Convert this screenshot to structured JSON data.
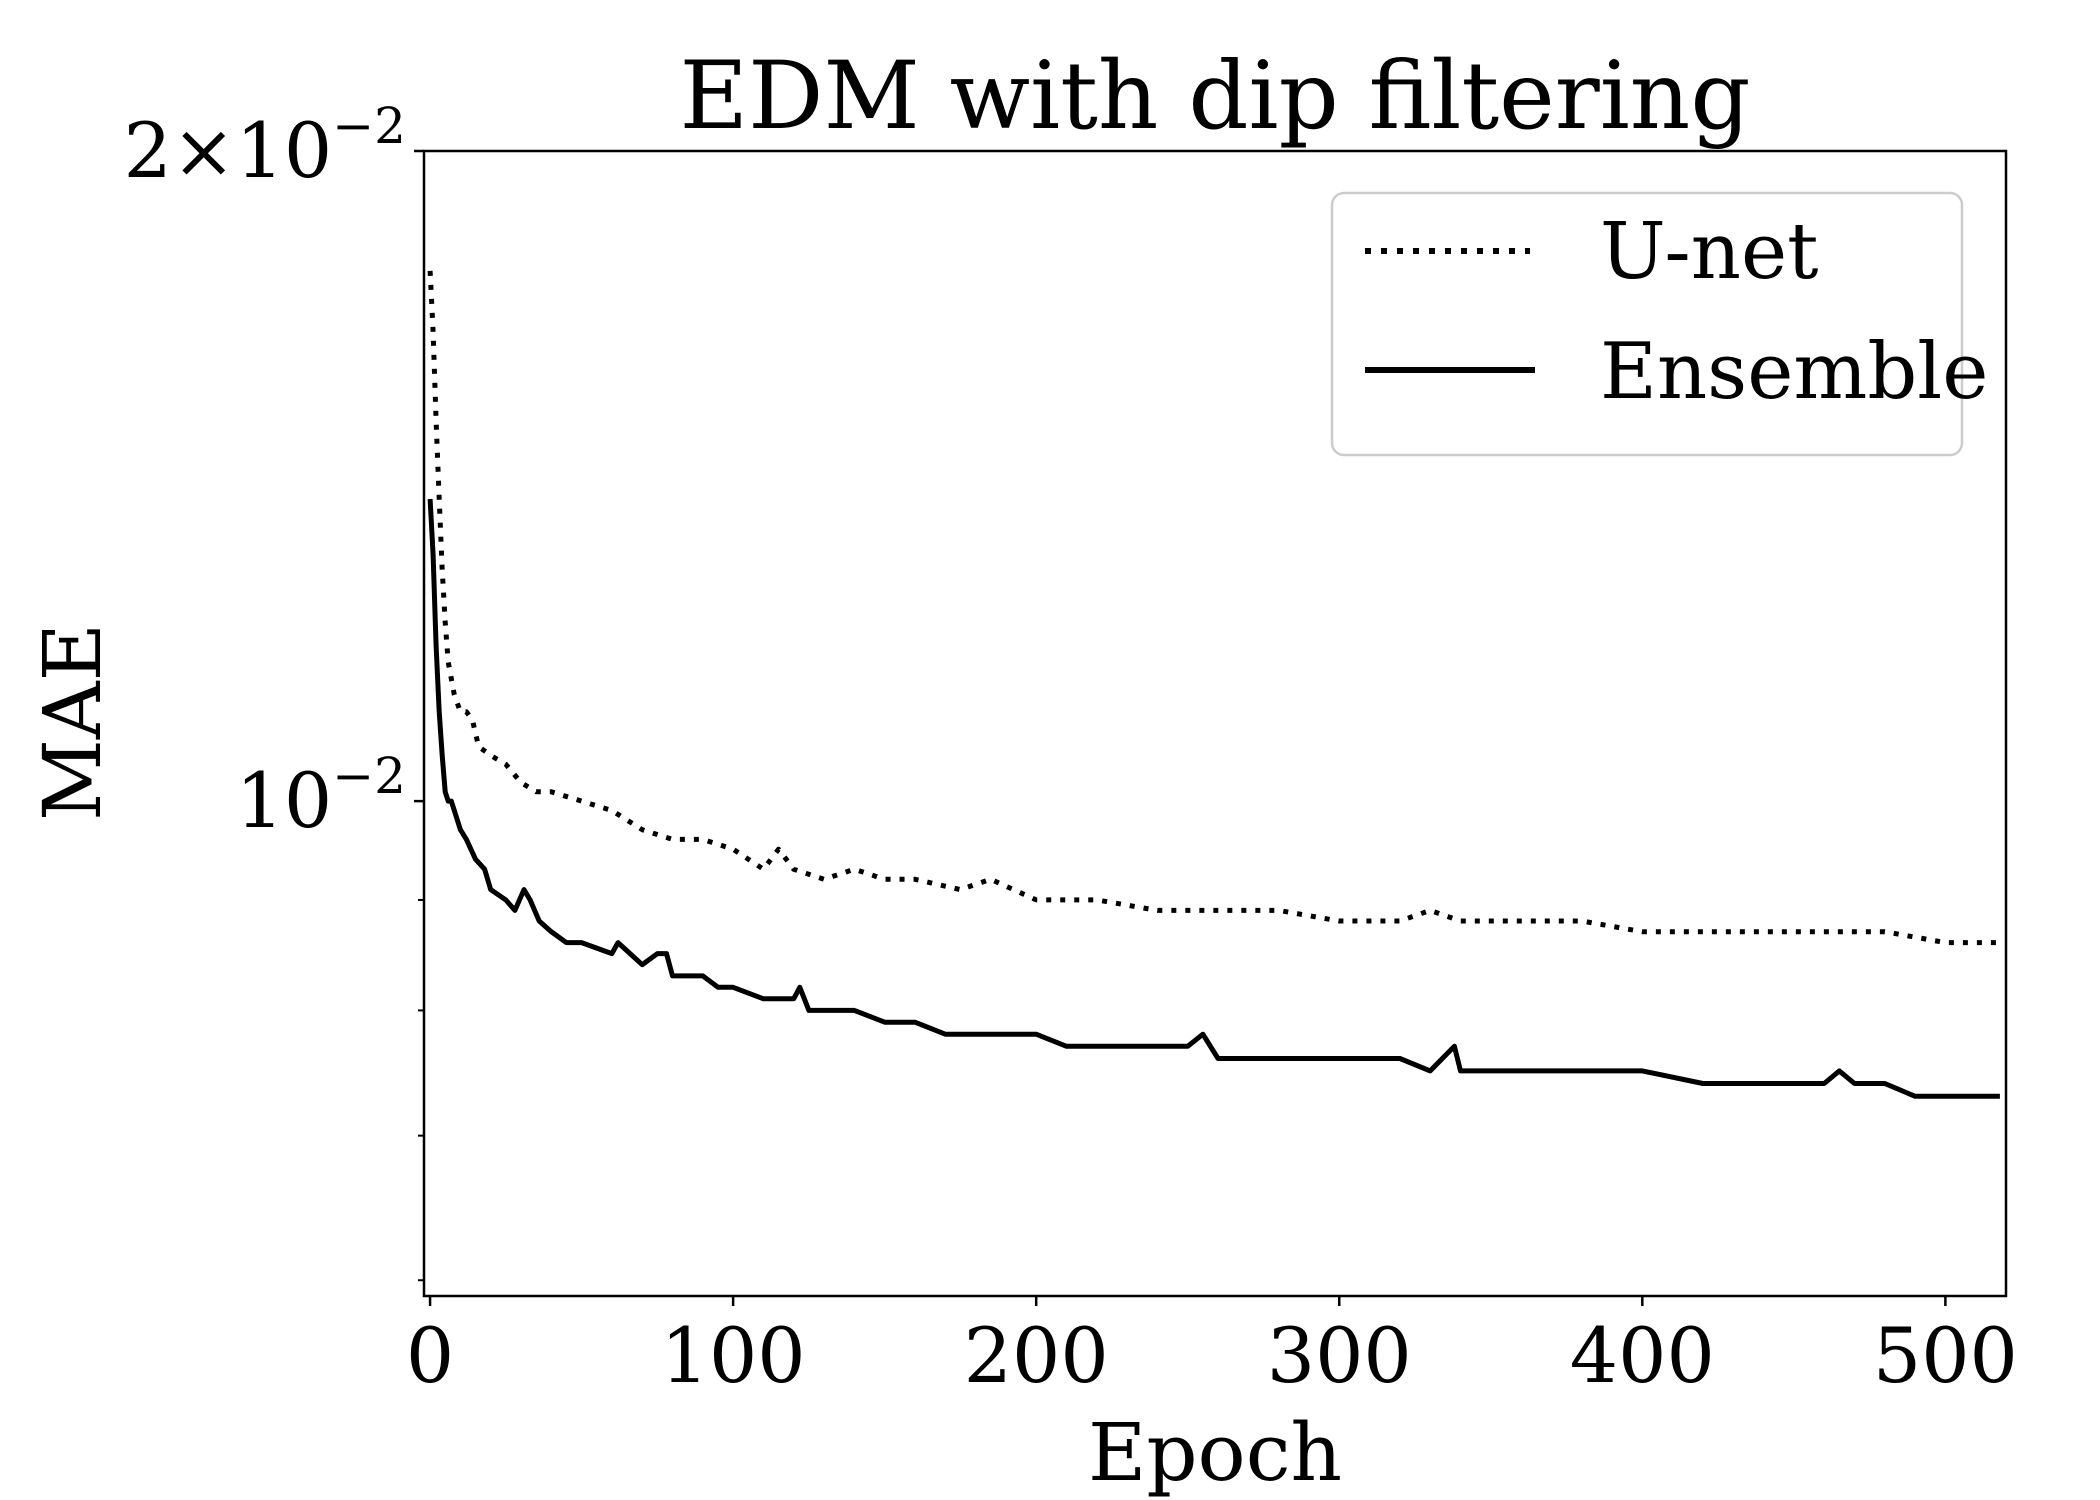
{
  "chart_data": {
    "type": "line",
    "title": "EDM with dip filtering",
    "xlabel": "Epoch",
    "ylabel": "MAE",
    "xlim": [
      -2,
      520
    ],
    "ylim": [
      0.0059,
      0.02
    ],
    "yscale": "log",
    "grid": false,
    "legend_position": "top-right",
    "x_ticks": [
      {
        "value": 0,
        "label": "0"
      },
      {
        "value": 100,
        "label": "100"
      },
      {
        "value": 200,
        "label": "200"
      },
      {
        "value": 300,
        "label": "300"
      },
      {
        "value": 400,
        "label": "400"
      },
      {
        "value": 500,
        "label": "500"
      }
    ],
    "y_ticks": [
      {
        "value": 0.02,
        "base": "2×10",
        "exp": "−2"
      },
      {
        "value": 0.01,
        "base": "10",
        "exp": "−2"
      }
    ],
    "y_minor_ticks": [
      0.006,
      0.007,
      0.008,
      0.009
    ],
    "series": [
      {
        "name": "U-net",
        "style": "dotted",
        "color": "#000000",
        "x": [
          0,
          1,
          2,
          3,
          4,
          5,
          6,
          8,
          10,
          12,
          14,
          16,
          20,
          25,
          30,
          35,
          40,
          50,
          60,
          70,
          80,
          90,
          100,
          110,
          115,
          120,
          130,
          140,
          150,
          160,
          175,
          185,
          200,
          220,
          240,
          260,
          280,
          300,
          320,
          330,
          340,
          355,
          360,
          380,
          400,
          420,
          440,
          460,
          480,
          500,
          518
        ],
        "y": [
          0.0176,
          0.0165,
          0.015,
          0.0138,
          0.0128,
          0.0121,
          0.0116,
          0.0112,
          0.011,
          0.011,
          0.0109,
          0.0106,
          0.0105,
          0.0104,
          0.0102,
          0.0101,
          0.0101,
          0.01,
          0.0099,
          0.0097,
          0.0096,
          0.0096,
          0.0095,
          0.0093,
          0.0095,
          0.0093,
          0.0092,
          0.0093,
          0.0092,
          0.0092,
          0.0091,
          0.0092,
          0.009,
          0.009,
          0.0089,
          0.0089,
          0.0089,
          0.0088,
          0.0088,
          0.0089,
          0.0088,
          0.0088,
          0.0088,
          0.0088,
          0.0087,
          0.0087,
          0.0087,
          0.0087,
          0.0087,
          0.0086,
          0.0086
        ]
      },
      {
        "name": "Ensemble",
        "style": "solid",
        "color": "#000000",
        "x": [
          0,
          1,
          2,
          3,
          4,
          5,
          6,
          7,
          8,
          10,
          12,
          15,
          18,
          20,
          25,
          28,
          31,
          33,
          36,
          40,
          45,
          50,
          60,
          62,
          70,
          75,
          78,
          80,
          85,
          90,
          95,
          100,
          110,
          120,
          122,
          125,
          130,
          140,
          150,
          160,
          170,
          180,
          190,
          200,
          210,
          220,
          240,
          250,
          255,
          260,
          280,
          300,
          310,
          320,
          330,
          338,
          340,
          350,
          370,
          400,
          420,
          440,
          460,
          465,
          470,
          480,
          490,
          500,
          510,
          518
        ],
        "y": [
          0.0138,
          0.013,
          0.0118,
          0.011,
          0.0105,
          0.0101,
          0.01,
          0.01,
          0.0099,
          0.0097,
          0.0096,
          0.0094,
          0.0093,
          0.0091,
          0.009,
          0.0089,
          0.0091,
          0.009,
          0.0088,
          0.0087,
          0.0086,
          0.0086,
          0.0085,
          0.0086,
          0.0084,
          0.0085,
          0.0085,
          0.0083,
          0.0083,
          0.0083,
          0.0082,
          0.0082,
          0.0081,
          0.0081,
          0.0082,
          0.008,
          0.008,
          0.008,
          0.0079,
          0.0079,
          0.0078,
          0.0078,
          0.0078,
          0.0078,
          0.0077,
          0.0077,
          0.0077,
          0.0077,
          0.0078,
          0.0076,
          0.0076,
          0.0076,
          0.0076,
          0.0076,
          0.0075,
          0.0077,
          0.0075,
          0.0075,
          0.0075,
          0.0075,
          0.0074,
          0.0074,
          0.0074,
          0.0075,
          0.0074,
          0.0074,
          0.0073,
          0.0073,
          0.0073,
          0.0073
        ]
      }
    ]
  }
}
